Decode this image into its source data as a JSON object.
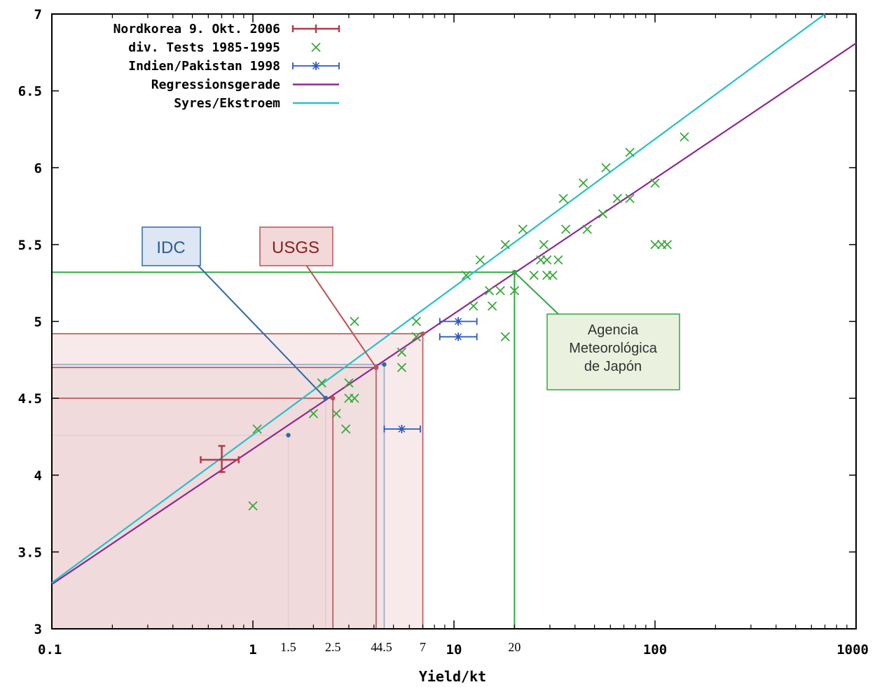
{
  "chart_data": {
    "type": "scatter",
    "title": "",
    "xlabel": "Yield/kt",
    "ylabel": "",
    "x_scale": "log",
    "xlim": [
      0.1,
      1000
    ],
    "ylim": [
      3,
      7
    ],
    "x_ticks": [
      {
        "value": 0.1,
        "label": "0.1"
      },
      {
        "value": 1,
        "label": "1"
      },
      {
        "value": 10,
        "label": "10"
      },
      {
        "value": 100,
        "label": "100"
      },
      {
        "value": 1000,
        "label": "1000"
      }
    ],
    "y_ticks": [
      {
        "value": 3,
        "label": "3"
      },
      {
        "value": 3.5,
        "label": "3.5"
      },
      {
        "value": 4,
        "label": "4"
      },
      {
        "value": 4.5,
        "label": "4.5"
      },
      {
        "value": 5,
        "label": "5"
      },
      {
        "value": 5.5,
        "label": "5.5"
      },
      {
        "value": 6,
        "label": "6"
      },
      {
        "value": 6.5,
        "label": "6.5"
      },
      {
        "value": 7,
        "label": "7"
      }
    ],
    "extra_x_labels": [
      {
        "value": 1.5,
        "label": "1.5"
      },
      {
        "value": 2.5,
        "label": "2.5"
      },
      {
        "value": 4,
        "label": "4"
      },
      {
        "value": 4.5,
        "label": "4.5"
      },
      {
        "value": 7,
        "label": "7"
      },
      {
        "value": 20,
        "label": "20"
      }
    ],
    "legend": {
      "position": "top-left",
      "entries": [
        {
          "name": "Nordkorea 9. Okt. 2006",
          "color": "#b83848",
          "marker": "errorbar"
        },
        {
          "name": "div. Tests 1985-1995",
          "color": "#3aa83a",
          "marker": "x"
        },
        {
          "name": "Indien/Pakistan 1998",
          "color": "#2e58c0",
          "marker": "star-errorbar"
        },
        {
          "name": "Regressionsgerade",
          "color": "#902890",
          "marker": "line"
        },
        {
          "name": "Syres/Ekstroem",
          "color": "#28c0c8",
          "marker": "line"
        }
      ]
    },
    "series": [
      {
        "name": "Nordkorea 9. Okt. 2006",
        "color": "#b83848",
        "points": [
          {
            "x": 0.7,
            "y": 4.1,
            "xerr": [
              0.55,
              0.85
            ],
            "yerr": [
              4.02,
              4.19
            ]
          }
        ]
      },
      {
        "name": "div. Tests 1985-1995",
        "color": "#3aa83a",
        "points": [
          {
            "x": 1,
            "y": 3.8
          },
          {
            "x": 1.05,
            "y": 4.3
          },
          {
            "x": 2.0,
            "y": 4.4
          },
          {
            "x": 2.2,
            "y": 4.6
          },
          {
            "x": 2.6,
            "y": 4.4
          },
          {
            "x": 2.9,
            "y": 4.3
          },
          {
            "x": 3.0,
            "y": 4.5
          },
          {
            "x": 3.2,
            "y": 4.5
          },
          {
            "x": 3.0,
            "y": 4.6
          },
          {
            "x": 3.2,
            "y": 5.0
          },
          {
            "x": 5.5,
            "y": 4.7
          },
          {
            "x": 5.5,
            "y": 4.8
          },
          {
            "x": 6.5,
            "y": 4.9
          },
          {
            "x": 6.5,
            "y": 5.0
          },
          {
            "x": 11.5,
            "y": 5.3
          },
          {
            "x": 12.5,
            "y": 5.1
          },
          {
            "x": 13.5,
            "y": 5.4
          },
          {
            "x": 15,
            "y": 5.2
          },
          {
            "x": 15.5,
            "y": 5.1
          },
          {
            "x": 17,
            "y": 5.2
          },
          {
            "x": 18,
            "y": 5.5
          },
          {
            "x": 18,
            "y": 4.9
          },
          {
            "x": 20,
            "y": 5.2
          },
          {
            "x": 22,
            "y": 5.6
          },
          {
            "x": 25,
            "y": 5.3
          },
          {
            "x": 27,
            "y": 5.4
          },
          {
            "x": 28,
            "y": 5.5
          },
          {
            "x": 29,
            "y": 5.3
          },
          {
            "x": 31,
            "y": 5.3
          },
          {
            "x": 29,
            "y": 5.4
          },
          {
            "x": 33,
            "y": 5.4
          },
          {
            "x": 35,
            "y": 5.8
          },
          {
            "x": 36,
            "y": 5.6
          },
          {
            "x": 44,
            "y": 5.9
          },
          {
            "x": 46,
            "y": 5.6
          },
          {
            "x": 55,
            "y": 5.7
          },
          {
            "x": 57,
            "y": 6.0
          },
          {
            "x": 65,
            "y": 5.8
          },
          {
            "x": 75,
            "y": 5.8
          },
          {
            "x": 75,
            "y": 6.1
          },
          {
            "x": 100,
            "y": 5.9
          },
          {
            "x": 100,
            "y": 5.5
          },
          {
            "x": 108,
            "y": 5.5
          },
          {
            "x": 115,
            "y": 5.5
          },
          {
            "x": 140,
            "y": 6.2
          }
        ]
      },
      {
        "name": "Indien/Pakistan 1998",
        "color": "#2e58c0",
        "points": [
          {
            "x": 10.5,
            "y": 5.0,
            "xerr": [
              8.5,
              13
            ]
          },
          {
            "x": 10.5,
            "y": 4.9,
            "xerr": [
              8.5,
              13
            ]
          },
          {
            "x": 5.5,
            "y": 4.3,
            "xerr": [
              4.5,
              6.8
            ]
          }
        ]
      }
    ],
    "lines": [
      {
        "name": "Regressionsgerade",
        "color": "#902890",
        "points": [
          {
            "x": 0.1,
            "y": 3.29
          },
          {
            "x": 1000,
            "y": 6.81
          }
        ]
      },
      {
        "name": "Syres/Ekstroem",
        "color": "#28c0c8",
        "points": [
          {
            "x": 0.1,
            "y": 3.3
          },
          {
            "x": 700,
            "y": 7.0
          }
        ]
      }
    ],
    "annotations": [
      {
        "name": "IDC",
        "label": "IDC",
        "color": "#2e6aa8",
        "fill": "#dce6f4",
        "ranges": [
          {
            "x": 1.5,
            "y": 4.26
          },
          {
            "x": 2.3,
            "y": 4.5
          },
          {
            "x": 4.5,
            "y": 4.72
          }
        ],
        "mark": {
          "x": 2.3,
          "y": 4.5
        }
      },
      {
        "name": "USGS",
        "label": "USGS",
        "color": "#c05050",
        "fill": "#f2d8d8",
        "ranges": [
          {
            "x": 2.5,
            "y": 4.5
          },
          {
            "x": 4.1,
            "y": 4.7
          },
          {
            "x": 7,
            "y": 4.92
          }
        ],
        "mark": {
          "x": 4.1,
          "y": 4.7
        }
      },
      {
        "name": "Agencia Meteorológica de Japón",
        "label_lines": [
          "Agencia",
          "Meteorológica",
          "de Japón"
        ],
        "color": "#30a840",
        "fill": "#eaf1df",
        "ranges": [
          {
            "x": 20,
            "y": 5.32
          }
        ],
        "mark": {
          "x": 20,
          "y": 5.32
        }
      }
    ]
  },
  "colors": {
    "regression": "#902890",
    "syres": "#28c0c8",
    "tests": "#3aa83a",
    "india": "#2e58c0",
    "nordkorea": "#b83848",
    "idc": "#2e6aa8",
    "usgs": "#c05050",
    "japan": "#30a840"
  }
}
